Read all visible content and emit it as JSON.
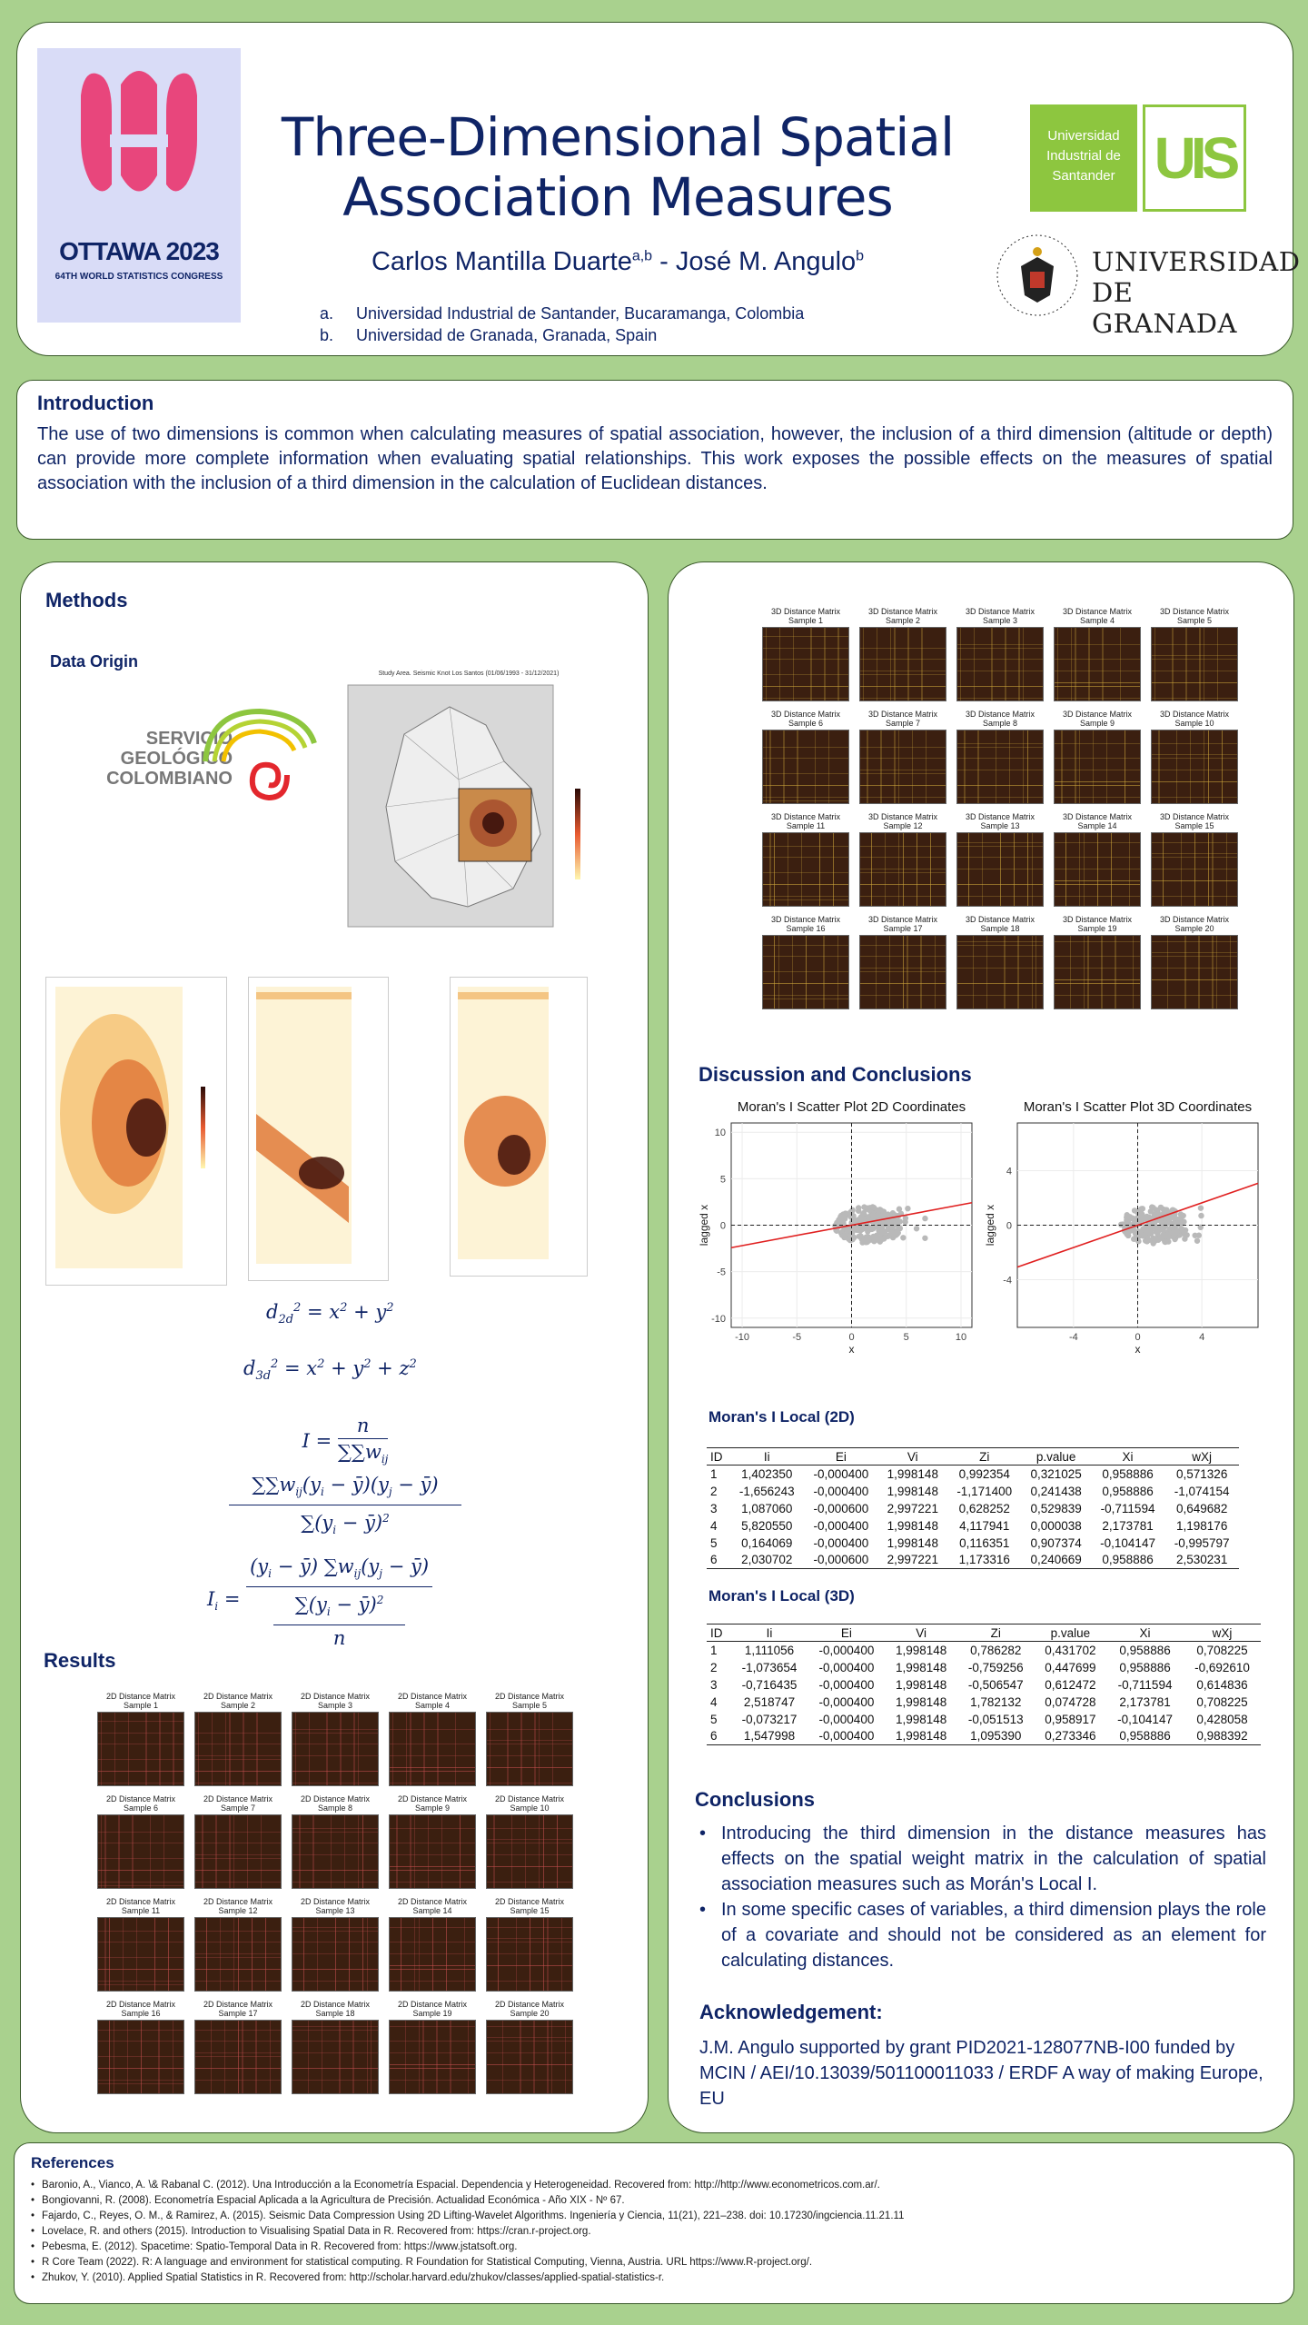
{
  "header": {
    "title_line1": "Three-Dimensional Spatial",
    "title_line2": "Association Measures",
    "author1": "Carlos Mantilla Duarte",
    "author1_sup": "a,b",
    "author_sep": " - ",
    "author2": "José M. Angulo",
    "author2_sup": "b",
    "affiliations": [
      {
        "mark": "a.",
        "text": "Universidad Industrial de Santander, Bucaramanga, Colombia"
      },
      {
        "mark": "b.",
        "text": "Universidad de Granada, Granada, Spain"
      }
    ],
    "logo_isi": {
      "city": "OTTAWA 2023",
      "sub": "64TH WORLD STATISTICS CONGRESS"
    },
    "logo_uis": {
      "lines": [
        "Universidad",
        "Industrial de",
        "Santander"
      ],
      "mark": "UIS"
    },
    "logo_ugr": {
      "line1": "UNIVERSIDAD",
      "line2": "DE GRANADA"
    }
  },
  "colors": {
    "background": "#a9d18e",
    "navy": "#0f2466",
    "isi_pink": "#e8467c",
    "uis_green": "#8dc63f",
    "regression": "#e02020"
  },
  "intro": {
    "heading": "Introduction",
    "text": "The use of two dimensions is common when calculating measures of spatial association, however, the inclusion of a third dimension (altitude or depth) can provide more complete information when evaluating spatial relationships. This work exposes the possible effects on the measures of spatial association with the inclusion of a third dimension in the calculation of Euclidean distances."
  },
  "methods": {
    "heading": "Methods",
    "sub": "Data Origin",
    "sgc": [
      "SERVICIO",
      "GEOLÓGICO",
      "COLOMBIANO"
    ],
    "map_title": "Study Area. Seismic Knot Los Santos (01/06/1993 - 31/12/2021)"
  },
  "results": {
    "heading": "Results"
  },
  "matrices_2d": {
    "label": "2D Distance Matrix",
    "samples": [
      "Sample 1",
      "Sample 2",
      "Sample 3",
      "Sample 4",
      "Sample 5",
      "Sample 6",
      "Sample 7",
      "Sample 8",
      "Sample 9",
      "Sample 10",
      "Sample 11",
      "Sample 12",
      "Sample 13",
      "Sample 14",
      "Sample 15",
      "Sample 16",
      "Sample 17",
      "Sample 18",
      "Sample 19",
      "Sample 20"
    ]
  },
  "matrices_3d": {
    "label": "3D Distance Matrix",
    "samples": [
      "Sample 1",
      "Sample 2",
      "Sample 3",
      "Sample 4",
      "Sample 5",
      "Sample 6",
      "Sample 7",
      "Sample 8",
      "Sample 9",
      "Sample 10",
      "Sample 11",
      "Sample 12",
      "Sample 13",
      "Sample 14",
      "Sample 15",
      "Sample 16",
      "Sample 17",
      "Sample 18",
      "Sample 19",
      "Sample 20"
    ]
  },
  "discussion": {
    "heading": "Discussion and Conclusions"
  },
  "chart_data": [
    {
      "type": "scatter",
      "title": "Moran's I Scatter Plot 2D Coordinates",
      "xlabel": "x",
      "ylabel": "lagged x",
      "xlim": [
        -11,
        11
      ],
      "ylim": [
        -11,
        11
      ],
      "xticks": [
        -10,
        -5,
        0,
        5,
        10
      ],
      "yticks": [
        -10,
        -5,
        0,
        5,
        10
      ],
      "regression": {
        "slope": 0.22,
        "intercept": 0
      }
    },
    {
      "type": "scatter",
      "title": "Moran's I Scatter Plot 3D Coordinates",
      "xlabel": "x",
      "ylabel": "lagged x",
      "xlim": [
        -7.5,
        7.5
      ],
      "ylim": [
        -7.5,
        7.5
      ],
      "xticks": [
        -4,
        0,
        4
      ],
      "yticks": [
        -4,
        0,
        4
      ],
      "regression": {
        "slope": 0.41,
        "intercept": 0
      }
    }
  ],
  "moran2d": {
    "heading": "Moran's I Local (2D)",
    "columns": [
      "ID",
      "Ii",
      "Ei",
      "Vi",
      "Zi",
      "p.value",
      "Xi",
      "wXj"
    ],
    "rows": [
      [
        "1",
        "1,402350",
        "-0,000400",
        "1,998148",
        "0,992354",
        "0,321025",
        "0,958886",
        "0,571326"
      ],
      [
        "2",
        "-1,656243",
        "-0,000400",
        "1,998148",
        "-1,171400",
        "0,241438",
        "0,958886",
        "-1,074154"
      ],
      [
        "3",
        "1,087060",
        "-0,000600",
        "2,997221",
        "0,628252",
        "0,529839",
        "-0,711594",
        "0,649682"
      ],
      [
        "4",
        "5,820550",
        "-0,000400",
        "1,998148",
        "4,117941",
        "0,000038",
        "2,173781",
        "1,198176"
      ],
      [
        "5",
        "0,164069",
        "-0,000400",
        "1,998148",
        "0,116351",
        "0,907374",
        "-0,104147",
        "-0,995797"
      ],
      [
        "6",
        "2,030702",
        "-0,000600",
        "2,997221",
        "1,173316",
        "0,240669",
        "0,958886",
        "2,530231"
      ]
    ]
  },
  "moran3d": {
    "heading": "Moran's I Local (3D)",
    "columns": [
      "ID",
      "Ii",
      "Ei",
      "Vi",
      "Zi",
      "p.value",
      "Xi",
      "wXj"
    ],
    "rows": [
      [
        "1",
        "1,111056",
        "-0,000400",
        "1,998148",
        "0,786282",
        "0,431702",
        "0,958886",
        "0,708225"
      ],
      [
        "2",
        "-1,073654",
        "-0,000400",
        "1,998148",
        "-0,759256",
        "0,447699",
        "0,958886",
        "-0,692610"
      ],
      [
        "3",
        "-0,716435",
        "-0,000400",
        "1,998148",
        "-0,506547",
        "0,612472",
        "-0,711594",
        "0,614836"
      ],
      [
        "4",
        "2,518747",
        "-0,000400",
        "1,998148",
        "1,782132",
        "0,074728",
        "2,173781",
        "0,708225"
      ],
      [
        "5",
        "-0,073217",
        "-0,000400",
        "1,998148",
        "-0,051513",
        "0,958917",
        "-0,104147",
        "0,428058"
      ],
      [
        "6",
        "1,547998",
        "-0,000400",
        "1,998148",
        "1,095390",
        "0,273346",
        "0,958886",
        "0,988392"
      ]
    ]
  },
  "conclusions": {
    "heading": "Conclusions",
    "items": [
      "Introducing the third dimension in the distance measures has effects on the spatial weight matrix in the calculation of spatial association measures such as Morán's Local I.",
      "In some specific cases of variables, a third dimension plays the role of a covariate and should not be considered as an element for calculating distances."
    ]
  },
  "ack": {
    "heading": "Acknowledgement:",
    "text": "J.M. Angulo supported by grant PID2021-128077NB-I00 funded by MCIN / AEI/10.13039/501100011033 / ERDF A way of making Europe, EU"
  },
  "references": {
    "heading": "References",
    "items": [
      "Baronio, A., Vianco, A. \\& Rabanal C. (2012). Una Introducción a la Econometría Espacial. Dependencia y Heterogeneidad. Recovered from: http://http://www.econometricos.com.ar/.",
      "Bongiovanni, R. (2008). Econometría Espacial Aplicada a la Agricultura de Precisión. Actualidad Económica - Año XIX - Nº 67.",
      "Fajardo, C., Reyes, O. M., & Ramirez, A. (2015). Seismic Data Compression Using 2D Lifting-Wavelet Algorithms. Ingeniería y Ciencia, 11(21), 221–238. doi: 10.17230/ingciencia.11.21.11",
      "Lovelace, R. and others (2015). Introduction to Visualising Spatial Data in R. Recovered from: https://cran.r-project.org.",
      "Pebesma, E. (2012). Spacetime: Spatio-Temporal Data in R. Recovered from: https://www.jstatsoft.org.",
      "R Core Team (2022). R: A language and environment for statistical computing. R Foundation for Statistical Computing, Vienna, Austria. URL https://www.R-project.org/.",
      "Zhukov, Y. (2010). Applied Spatial Statistics in R. Recovered from: http://scholar.harvard.edu/zhukov/classes/applied-spatial-statistics-r."
    ]
  }
}
